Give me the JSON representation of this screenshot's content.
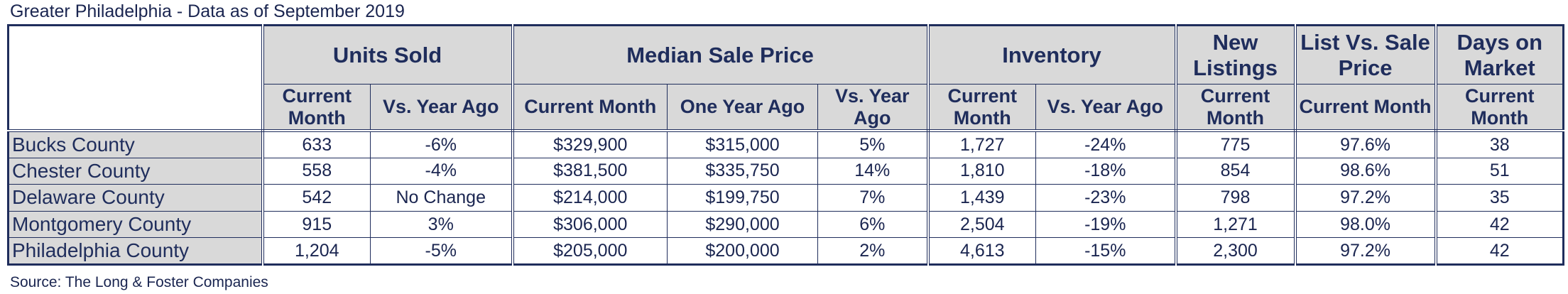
{
  "caption": "Greater Philadelphia - Data as of September 2019",
  "source": "Source: The Long & Foster Companies",
  "group_headers": {
    "units_sold": "Units Sold",
    "median_sale_price": "Median Sale Price",
    "inventory": "Inventory",
    "new_listings": "New Listings",
    "list_vs_sale": "List Vs. Sale Price",
    "days_on_market": "Days on Market"
  },
  "sub_headers": {
    "units_current": "Current Month",
    "units_vs": "Vs. Year Ago",
    "price_current": "Current Month",
    "price_one_year": "One Year Ago",
    "price_vs": "Vs. Year Ago",
    "inv_current": "Current Month",
    "inv_vs": "Vs. Year Ago",
    "new_current": "Current Month",
    "list_current": "Current Month",
    "days_current": "Current Month"
  },
  "rows": [
    {
      "county": "Bucks County",
      "units": "633",
      "units_vs": "-6%",
      "price": "$329,900",
      "price_prev": "$315,000",
      "price_vs": "5%",
      "inventory": "1,727",
      "inv_vs": "-24%",
      "new_listings": "775",
      "list_sale": "97.6%",
      "days": "38"
    },
    {
      "county": "Chester County",
      "units": "558",
      "units_vs": "-4%",
      "price": "$381,500",
      "price_prev": "$335,750",
      "price_vs": "14%",
      "inventory": "1,810",
      "inv_vs": "-18%",
      "new_listings": "854",
      "list_sale": "98.6%",
      "days": "51"
    },
    {
      "county": "Delaware County",
      "units": "542",
      "units_vs": "No Change",
      "price": "$214,000",
      "price_prev": "$199,750",
      "price_vs": "7%",
      "inventory": "1,439",
      "inv_vs": "-23%",
      "new_listings": "798",
      "list_sale": "97.2%",
      "days": "35"
    },
    {
      "county": "Montgomery County",
      "units": "915",
      "units_vs": "3%",
      "price": "$306,000",
      "price_prev": "$290,000",
      "price_vs": "6%",
      "inventory": "2,504",
      "inv_vs": "-19%",
      "new_listings": "1,271",
      "list_sale": "98.0%",
      "days": "42"
    },
    {
      "county": "Philadelphia County",
      "units": "1,204",
      "units_vs": "-5%",
      "price": "$205,000",
      "price_prev": "$200,000",
      "price_vs": "2%",
      "inventory": "4,613",
      "inv_vs": "-15%",
      "new_listings": "2,300",
      "list_sale": "97.2%",
      "days": "42"
    }
  ]
}
